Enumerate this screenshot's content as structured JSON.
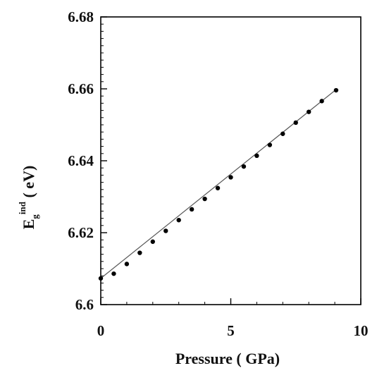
{
  "chart_data": {
    "type": "scatter",
    "xlabel": "Pressure ( GPa)",
    "ylabel": {
      "main": "E",
      "sub": "g",
      "sup": "ind",
      "unit": " ( eV)"
    },
    "xlim": [
      0,
      10
    ],
    "ylim": [
      6.6,
      6.68
    ],
    "x_ticks": [
      0,
      5,
      10
    ],
    "x_tick_labels": [
      "0",
      "5",
      "10"
    ],
    "y_ticks": [
      6.6,
      6.62,
      6.64,
      6.66,
      6.68
    ],
    "y_tick_labels": [
      "6.6",
      "6.62",
      "6.64",
      "6.66",
      "6.68"
    ],
    "x_minor_step": 1,
    "y_minor_step": 0.002,
    "grid": false,
    "legend": "none",
    "fit_line": {
      "from": [
        0,
        6.6073
      ],
      "to": [
        9.05,
        6.6598
      ]
    },
    "series": [
      {
        "marker_color": "#000000",
        "x": [
          0,
          0.5,
          1.0,
          1.5,
          2.0,
          2.5,
          3.0,
          3.5,
          4.0,
          4.5,
          5.0,
          5.5,
          6.0,
          6.5,
          7.0,
          7.5,
          8.0,
          8.5,
          9.05
        ],
        "y": [
          6.6073,
          6.6086,
          6.6113,
          6.6144,
          6.6175,
          6.6205,
          6.6235,
          6.6265,
          6.6294,
          6.6324,
          6.6354,
          6.6384,
          6.6414,
          6.6444,
          6.6475,
          6.6506,
          6.6536,
          6.6566,
          6.6596
        ]
      }
    ]
  }
}
